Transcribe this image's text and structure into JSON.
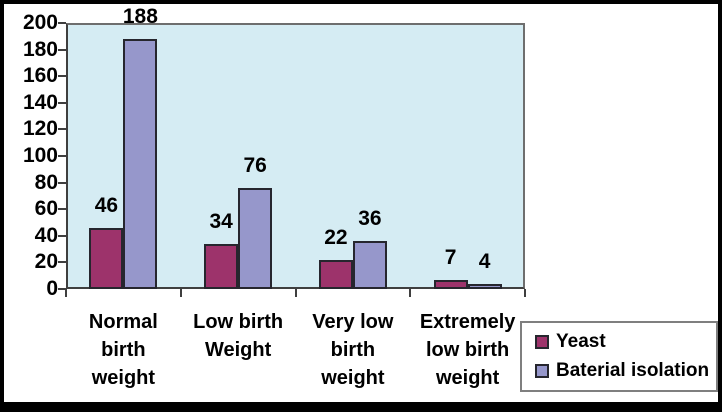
{
  "chart_data": {
    "type": "bar",
    "title": "",
    "xlabel": "",
    "ylabel": "",
    "categories": [
      "Normal\nbirth\nweight",
      "Low birth\nWeight",
      "Very low\nbirth\nweight",
      "Extremely\nlow birth\nweight"
    ],
    "series": [
      {
        "name": "Yeast",
        "values": [
          46,
          34,
          22,
          7
        ],
        "color": "#9D336B"
      },
      {
        "name": "Baterial isolation",
        "values": [
          188,
          76,
          36,
          4
        ],
        "color": "#9697CB"
      }
    ],
    "ylim": [
      0,
      200
    ],
    "yticks": [
      0,
      20,
      40,
      60,
      80,
      100,
      120,
      140,
      160,
      180,
      200
    ],
    "grid": false,
    "data_labels": true,
    "legend_position": "bottom-right",
    "colors": {
      "plot_background": "#D5ECF3",
      "bar_border": "#26262E",
      "axis_line": "#3F3F3F",
      "plot_border": "#6E6E6E",
      "legend_border": "#7F7F7F",
      "frame_border": "#000000",
      "chart_background": "#FFFFFF",
      "text": "#000000"
    }
  }
}
